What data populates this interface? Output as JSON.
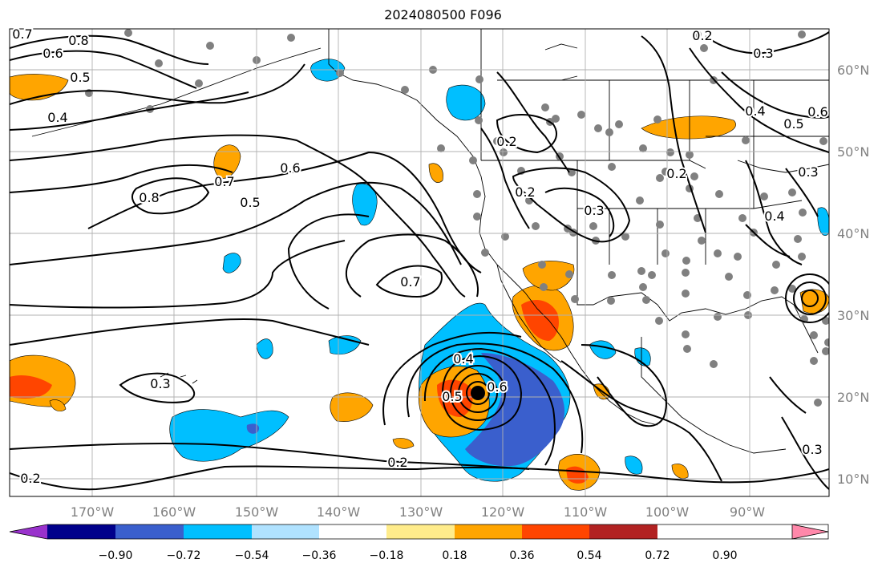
{
  "title": "2024080500 F096",
  "map": {
    "longitude_labels": [
      "170°W",
      "160°W",
      "150°W",
      "140°W",
      "130°W",
      "120°W",
      "110°W",
      "100°W",
      "90°W"
    ],
    "latitude_labels": [
      "60°N",
      "50°N",
      "40°N",
      "30°N",
      "20°N",
      "10°N"
    ],
    "contour_labels": [
      {
        "text": "0.7"
      },
      {
        "text": "0.8"
      },
      {
        "text": "0.6"
      },
      {
        "text": "0.5"
      },
      {
        "text": "0.4"
      },
      {
        "text": "0.8"
      },
      {
        "text": "0.7"
      },
      {
        "text": "0.6"
      },
      {
        "text": "0.5"
      },
      {
        "text": "0.7"
      },
      {
        "text": "0.3"
      },
      {
        "text": "0.2"
      },
      {
        "text": "0.2"
      },
      {
        "text": "0.4"
      },
      {
        "text": "0.5"
      },
      {
        "text": "0.6"
      },
      {
        "text": "0.2"
      },
      {
        "text": "0.2"
      },
      {
        "text": "0.2"
      },
      {
        "text": "0.3"
      },
      {
        "text": "0.3"
      },
      {
        "text": "0.4"
      },
      {
        "text": "0.5"
      },
      {
        "text": "0.6"
      },
      {
        "text": "0.2"
      },
      {
        "text": "0.3"
      },
      {
        "text": "0.4"
      },
      {
        "text": "0.3"
      }
    ]
  },
  "colorbar": {
    "tick_labels": [
      "−0.90",
      "−0.72",
      "−0.54",
      "−0.36",
      "−0.18",
      "0.18",
      "0.36",
      "0.54",
      "0.72",
      "0.90"
    ],
    "colors": [
      "#9932cc",
      "#00008b",
      "#3a5fcd",
      "#00bfff",
      "#b0e2ff",
      "#ffffff",
      "#ffec8b",
      "#ffa500",
      "#ff4500",
      "#b22222",
      "#ff88aa"
    ]
  },
  "colors": {
    "land_outline": "#000000",
    "station_dot": "#808080",
    "grid": "#b0b0b0",
    "axis_text": "#808080"
  }
}
